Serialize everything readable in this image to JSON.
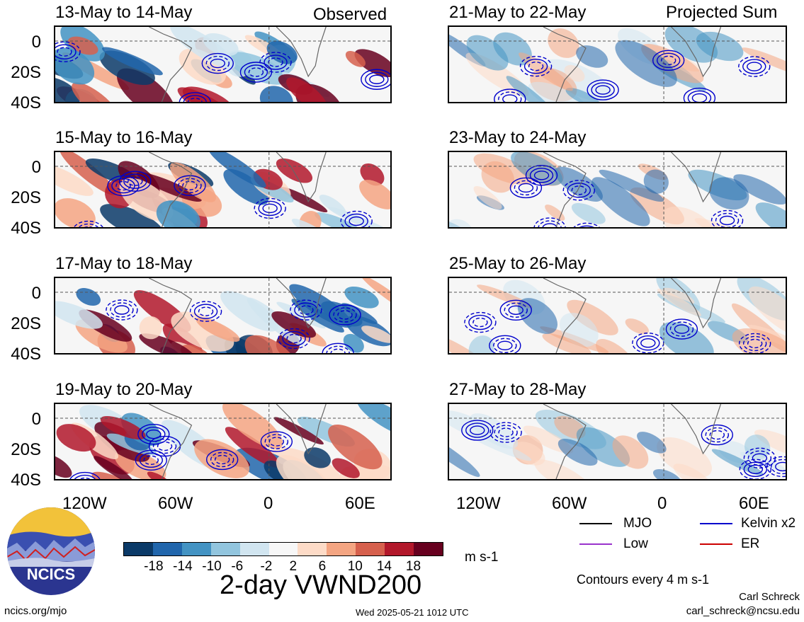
{
  "panels": [
    {
      "title": "13-May to 14-May",
      "label": "Observed"
    },
    {
      "title": "15-May to 16-May",
      "label": ""
    },
    {
      "title": "17-May to 18-May",
      "label": ""
    },
    {
      "title": "19-May to 20-May",
      "label": ""
    },
    {
      "title": "21-May to 22-May",
      "label": "Projected Sum"
    },
    {
      "title": "23-May to 24-May",
      "label": ""
    },
    {
      "title": "25-May to 26-May",
      "label": ""
    },
    {
      "title": "27-May to 28-May",
      "label": ""
    }
  ],
  "lat_labels": [
    "0",
    "20S",
    "40S"
  ],
  "lon_labels": [
    "120W",
    "60W",
    "0",
    "60E"
  ],
  "colorbar": {
    "colors": [
      "#0b3a68",
      "#2166ac",
      "#4393c3",
      "#92c5de",
      "#d1e5f0",
      "#f7f7f7",
      "#fddbc7",
      "#f4a582",
      "#d6604d",
      "#b2182b",
      "#67001f"
    ],
    "ticks": [
      "-18",
      "-14",
      "-10",
      "-6",
      "-2",
      "2",
      "6",
      "10",
      "14",
      "18"
    ],
    "units": "m s-1"
  },
  "legend": {
    "items": [
      {
        "label": "MJO",
        "color": "#000000"
      },
      {
        "label": "Kelvin x2",
        "color": "#0000cc"
      },
      {
        "label": "Low",
        "color": "#9933cc"
      },
      {
        "label": "ER",
        "color": "#cc0000"
      }
    ],
    "note": "Contours every 4 m s-1"
  },
  "main_title": "2-day VWND200",
  "logo_text": "NCICS",
  "footer": {
    "left": "ncics.org/mjo",
    "center": "Wed 2025-05-21 1012 UTC",
    "author": "Carl Schreck",
    "email": "carl_schreck@ncsu.edu"
  }
}
